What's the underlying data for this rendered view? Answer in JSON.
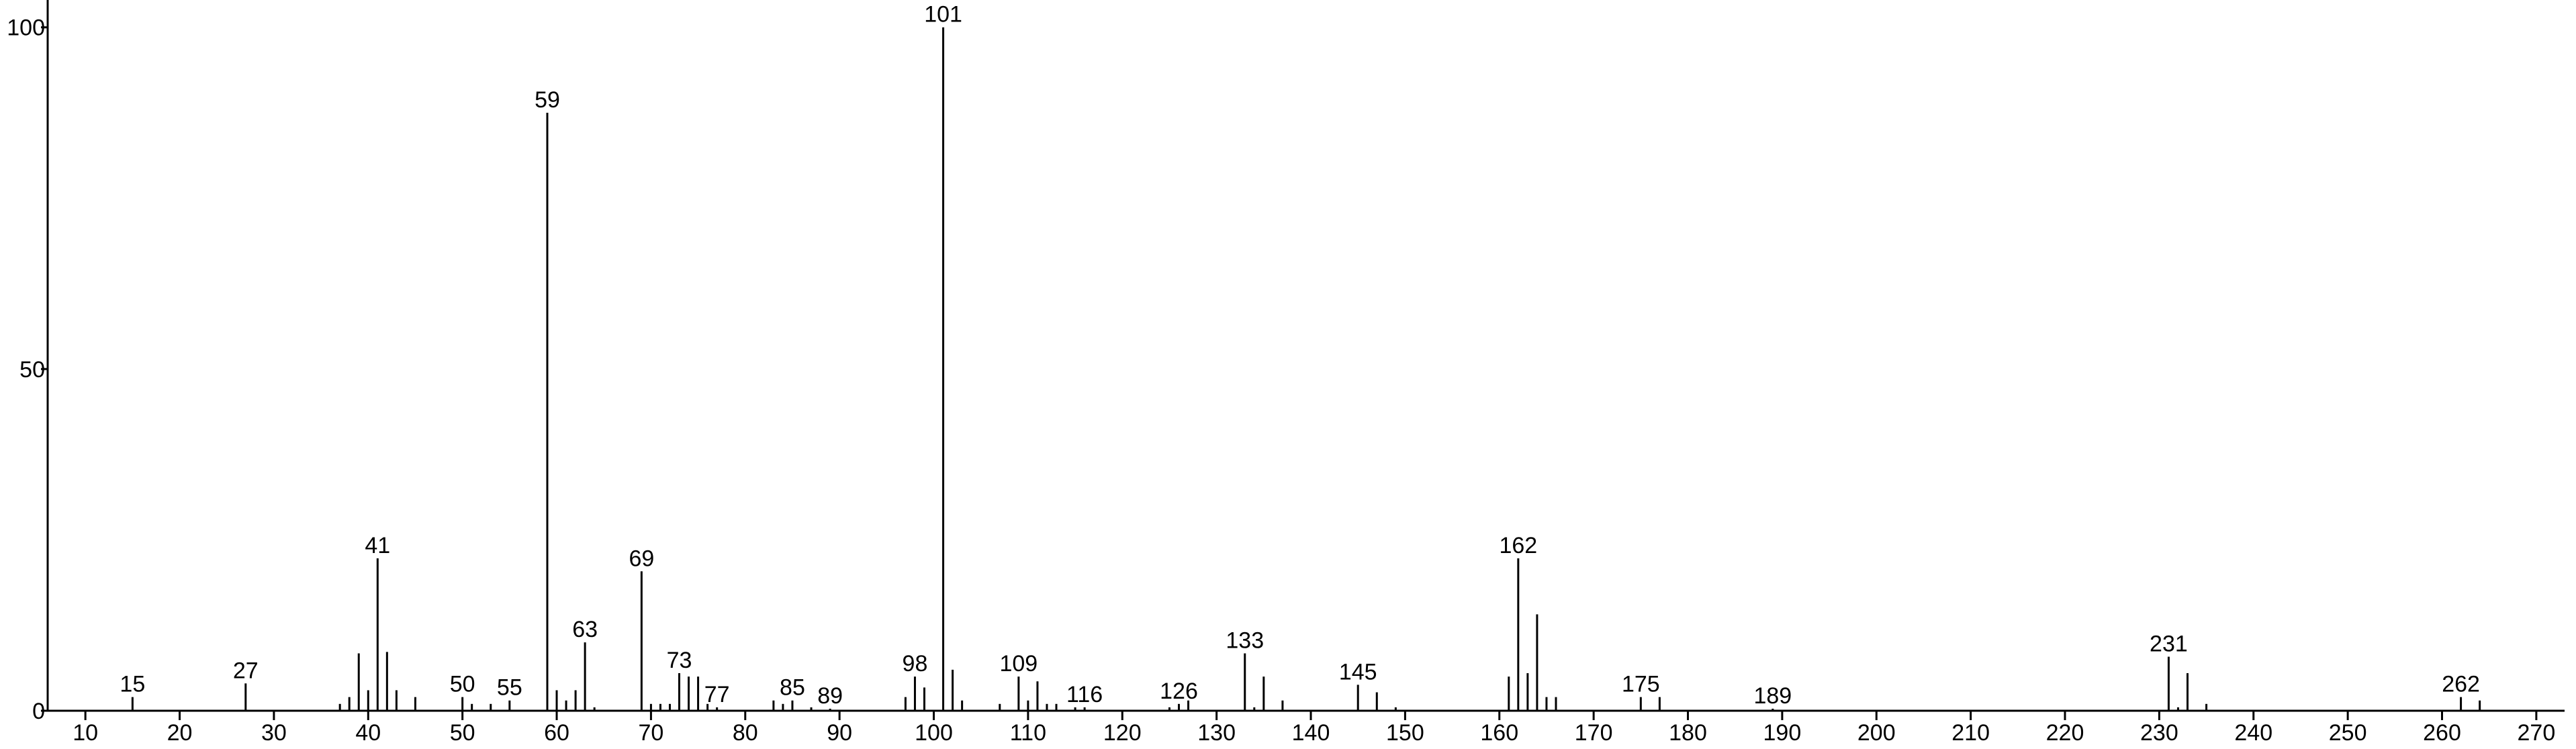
{
  "chart_data": {
    "type": "stick",
    "x": [
      15,
      27,
      37,
      38,
      39,
      40,
      41,
      42,
      43,
      45,
      50,
      51,
      53,
      55,
      59,
      60,
      61,
      62,
      63,
      64,
      69,
      70,
      71,
      72,
      73,
      74,
      75,
      76,
      77,
      83,
      84,
      85,
      87,
      89,
      97,
      98,
      99,
      101,
      102,
      103,
      107,
      109,
      110,
      111,
      112,
      113,
      115,
      116,
      125,
      126,
      127,
      133,
      134,
      135,
      137,
      145,
      147,
      149,
      161,
      162,
      163,
      164,
      165,
      166,
      175,
      177,
      189,
      231,
      232,
      233,
      235,
      262,
      264
    ],
    "values": [
      2,
      4,
      1,
      2,
      8.4,
      3,
      22.3,
      8.6,
      3,
      2,
      2,
      1,
      1,
      1.5,
      87.5,
      3,
      1.5,
      3,
      10,
      0.5,
      20.4,
      1,
      1,
      1,
      5.5,
      5,
      5,
      1,
      0.5,
      1.5,
      1,
      1.5,
      0.5,
      0.3,
      2,
      5,
      3.4,
      100,
      6,
      1.5,
      1,
      5,
      1.5,
      4.3,
      1,
      1,
      0.5,
      0.5,
      0.5,
      1,
      1.5,
      8.4,
      0.5,
      5,
      1.5,
      3.8,
      2.7,
      0.5,
      5,
      22.3,
      5.5,
      14.1,
      2,
      2,
      2,
      2,
      0.3,
      7.9,
      0.5,
      5.5,
      1,
      2,
      1.5
    ],
    "color": "#000000",
    "label_x": [
      15,
      27,
      41,
      50,
      55,
      59,
      63,
      69,
      73,
      77,
      85,
      89,
      98,
      101,
      109,
      116,
      126,
      133,
      145,
      162,
      175,
      189,
      231,
      262
    ],
    "xlim": [
      6,
      273
    ],
    "xticks": [
      10,
      20,
      30,
      40,
      50,
      60,
      70,
      80,
      90,
      100,
      110,
      120,
      130,
      140,
      150,
      160,
      170,
      180,
      190,
      200,
      210,
      220,
      230,
      240,
      250,
      260,
      270
    ],
    "ylim": [
      0,
      104
    ],
    "yticks": [
      0,
      50,
      100
    ]
  }
}
